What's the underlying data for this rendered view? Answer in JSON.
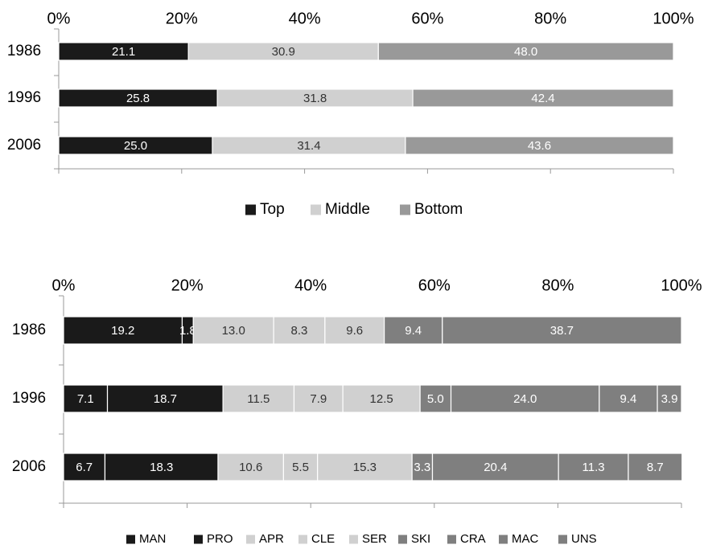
{
  "chart_data": [
    {
      "type": "bar",
      "orientation": "horizontal",
      "stacked": true,
      "percent": true,
      "categories": [
        "1986",
        "1996",
        "2006"
      ],
      "series": [
        {
          "name": "Top",
          "color": "#1a1a1a",
          "values": [
            21.1,
            25.8,
            25.0
          ]
        },
        {
          "name": "Middle",
          "color": "#d0d0d0",
          "values": [
            30.9,
            31.8,
            31.4
          ]
        },
        {
          "name": "Bottom",
          "color": "#999999",
          "values": [
            48.0,
            42.4,
            43.6
          ]
        }
      ],
      "x_ticks": [
        "0%",
        "20%",
        "40%",
        "60%",
        "80%",
        "100%"
      ],
      "xlim": [
        0,
        100
      ],
      "legend_position": "bottom"
    },
    {
      "type": "bar",
      "orientation": "horizontal",
      "stacked": true,
      "percent": true,
      "categories": [
        "1986",
        "1996",
        "2006"
      ],
      "series": [
        {
          "name": "MAN",
          "color": "#1a1a1a",
          "values": [
            19.2,
            7.1,
            6.7
          ]
        },
        {
          "name": "PRO",
          "color": "#1a1a1a",
          "values": [
            1.8,
            18.7,
            18.3
          ]
        },
        {
          "name": "APR",
          "color": "#d0d0d0",
          "values": [
            13.0,
            11.5,
            10.6
          ]
        },
        {
          "name": "CLE",
          "color": "#d0d0d0",
          "values": [
            8.3,
            7.9,
            5.5
          ]
        },
        {
          "name": "SER",
          "color": "#d0d0d0",
          "values": [
            9.6,
            12.5,
            15.3
          ]
        },
        {
          "name": "SKI",
          "color": "#7f7f7f",
          "values": [
            9.4,
            5.0,
            3.3
          ]
        },
        {
          "name": "CRA",
          "color": "#7f7f7f",
          "values": [
            38.7,
            24.0,
            20.4
          ]
        },
        {
          "name": "MAC",
          "color": "#7f7f7f",
          "values": [
            null,
            9.4,
            11.3
          ]
        },
        {
          "name": "UNS",
          "color": "#7f7f7f",
          "values": [
            null,
            3.9,
            8.7
          ]
        }
      ],
      "x_ticks": [
        "0%",
        "20%",
        "40%",
        "60%",
        "80%",
        "100%"
      ],
      "xlim": [
        0,
        100
      ],
      "legend_position": "bottom"
    }
  ]
}
